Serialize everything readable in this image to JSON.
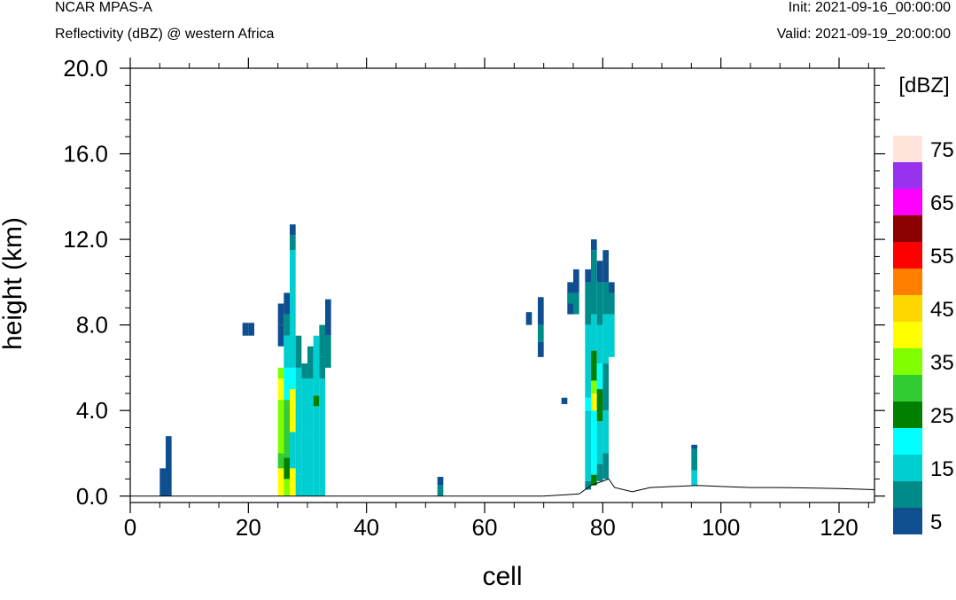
{
  "header": {
    "model": "NCAR MPAS-A",
    "field": "Reflectivity (dBZ) @ western Africa",
    "init": "Init: 2021-09-16_00:00:00",
    "valid": "Valid: 2021-09-19_20:00:00"
  },
  "chart_data": {
    "type": "heatmap",
    "xlabel": "cell",
    "ylabel": "height (km)",
    "xlim": [
      0,
      126
    ],
    "ylim": [
      -0.3,
      20.0
    ],
    "x_ticks": [
      0,
      20,
      40,
      60,
      80,
      100,
      120
    ],
    "x_ticklabels": [
      "0",
      "20",
      "40",
      "60",
      "80",
      "100",
      "120"
    ],
    "y_ticks": [
      0,
      4,
      8,
      12,
      16,
      20
    ],
    "y_ticklabels": [
      "0.0",
      "4.0",
      "8.0",
      "12.0",
      "16.0",
      "20.0"
    ],
    "colorbar": {
      "unit_label": "[dBZ]",
      "levels": [
        5,
        10,
        15,
        20,
        25,
        30,
        35,
        40,
        45,
        50,
        55,
        60,
        65,
        70,
        75
      ],
      "labels": [
        "5",
        "15",
        "25",
        "35",
        "45",
        "55",
        "65",
        "75"
      ],
      "colors": [
        "#0f4f8f",
        "#008b8b",
        "#00ced1",
        "#00ffff",
        "#008000",
        "#32cd32",
        "#7fff00",
        "#ffff00",
        "#ffd700",
        "#ff8000",
        "#ff0000",
        "#8b0000",
        "#ff00ff",
        "#9932ee",
        "#ffe4dc"
      ]
    },
    "columns": [
      {
        "x": 5.5,
        "cells": [
          [
            0,
            1.3,
            5
          ]
        ]
      },
      {
        "x": 6.5,
        "cells": [
          [
            0,
            2.8,
            5
          ]
        ]
      },
      {
        "x": 19.5,
        "cells": [
          [
            7.5,
            8.1,
            5
          ]
        ]
      },
      {
        "x": 20.5,
        "cells": [
          [
            7.5,
            8.1,
            5
          ]
        ]
      },
      {
        "x": 25.5,
        "cells": [
          [
            0,
            1.3,
            40
          ],
          [
            1.3,
            2.0,
            30
          ],
          [
            2.0,
            4.5,
            35
          ],
          [
            4.5,
            5.5,
            40
          ],
          [
            5.5,
            6.0,
            35
          ],
          [
            7.0,
            8.0,
            5
          ],
          [
            8.0,
            9.0,
            5
          ]
        ]
      },
      {
        "x": 26.5,
        "cells": [
          [
            0,
            0.8,
            35
          ],
          [
            0.8,
            1.8,
            25
          ],
          [
            1.8,
            4.5,
            30
          ],
          [
            4.5,
            6.0,
            20
          ],
          [
            6.0,
            7.5,
            15
          ],
          [
            7.5,
            8.5,
            10
          ],
          [
            8.5,
            9.5,
            5
          ]
        ]
      },
      {
        "x": 27.5,
        "cells": [
          [
            0,
            1.3,
            40
          ],
          [
            1.3,
            3.0,
            15
          ],
          [
            3.0,
            5.0,
            40
          ],
          [
            5.0,
            6.0,
            20
          ],
          [
            6.0,
            11.5,
            15
          ],
          [
            11.5,
            12.2,
            10
          ],
          [
            12.2,
            12.7,
            5
          ]
        ]
      },
      {
        "x": 28.5,
        "cells": [
          [
            0,
            1.0,
            15
          ],
          [
            1.0,
            6.0,
            15
          ],
          [
            6.0,
            7.5,
            10
          ]
        ]
      },
      {
        "x": 29.5,
        "cells": [
          [
            0,
            1.5,
            15
          ],
          [
            1.5,
            5.5,
            15
          ],
          [
            5.5,
            6.2,
            10
          ]
        ]
      },
      {
        "x": 30.5,
        "cells": [
          [
            0,
            3.0,
            15
          ],
          [
            3.0,
            5.5,
            15
          ],
          [
            5.5,
            7.0,
            10
          ]
        ]
      },
      {
        "x": 31.5,
        "cells": [
          [
            0,
            4.2,
            15
          ],
          [
            4.2,
            4.7,
            25
          ],
          [
            4.7,
            7.5,
            15
          ]
        ]
      },
      {
        "x": 32.5,
        "cells": [
          [
            0,
            5.5,
            15
          ],
          [
            5.5,
            6.5,
            10
          ],
          [
            6.5,
            8.0,
            10
          ]
        ]
      },
      {
        "x": 33.5,
        "cells": [
          [
            6.0,
            7.5,
            10
          ],
          [
            7.5,
            9.2,
            5
          ]
        ]
      },
      {
        "x": 52.5,
        "cells": [
          [
            0,
            0.5,
            10
          ],
          [
            0.5,
            0.9,
            5
          ]
        ]
      },
      {
        "x": 67.5,
        "cells": [
          [
            8.0,
            8.6,
            5
          ]
        ]
      },
      {
        "x": 69.5,
        "cells": [
          [
            6.5,
            7.2,
            5
          ],
          [
            7.2,
            8.0,
            10
          ],
          [
            8.0,
            9.3,
            5
          ]
        ]
      },
      {
        "x": 73.5,
        "cells": [
          [
            4.3,
            4.6,
            5
          ]
        ]
      },
      {
        "x": 74.5,
        "cells": [
          [
            8.5,
            10.0,
            5
          ],
          [
            9.0,
            9.5,
            10
          ]
        ]
      },
      {
        "x": 75.5,
        "cells": [
          [
            8.5,
            9.5,
            10
          ],
          [
            9.5,
            10.6,
            5
          ]
        ]
      },
      {
        "x": 77.5,
        "cells": [
          [
            0.3,
            0.7,
            10
          ],
          [
            0.7,
            4.0,
            15
          ],
          [
            4.0,
            4.6,
            20
          ],
          [
            4.6,
            8.0,
            15
          ],
          [
            8.0,
            10.0,
            10
          ],
          [
            10.0,
            10.6,
            5
          ]
        ]
      },
      {
        "x": 78.5,
        "cells": [
          [
            0.5,
            1.0,
            25
          ],
          [
            1.0,
            4.0,
            20
          ],
          [
            4.0,
            4.8,
            40
          ],
          [
            4.8,
            5.4,
            35
          ],
          [
            5.4,
            6.8,
            25
          ],
          [
            6.8,
            8.5,
            15
          ],
          [
            8.5,
            11.5,
            10
          ],
          [
            11.5,
            12.0,
            5
          ]
        ]
      },
      {
        "x": 79.5,
        "cells": [
          [
            0.7,
            1.5,
            10
          ],
          [
            1.5,
            3.5,
            15
          ],
          [
            3.5,
            5.0,
            25
          ],
          [
            5.0,
            6.2,
            20
          ],
          [
            6.2,
            8.0,
            15
          ],
          [
            8.0,
            10.0,
            10
          ],
          [
            10.0,
            11.0,
            5
          ]
        ]
      },
      {
        "x": 80.5,
        "cells": [
          [
            0.8,
            2.0,
            10
          ],
          [
            2.0,
            4.0,
            15
          ],
          [
            4.0,
            6.2,
            10
          ],
          [
            6.2,
            8.5,
            15
          ],
          [
            8.5,
            10.0,
            10
          ],
          [
            10.0,
            11.5,
            5
          ]
        ]
      },
      {
        "x": 81.5,
        "cells": [
          [
            6.5,
            8.5,
            15
          ],
          [
            8.5,
            9.5,
            10
          ],
          [
            9.5,
            10.0,
            5
          ]
        ]
      },
      {
        "x": 95.5,
        "cells": [
          [
            0.5,
            1.2,
            15
          ],
          [
            1.2,
            2.2,
            10
          ],
          [
            2.2,
            2.4,
            5
          ]
        ]
      }
    ],
    "terrain": {
      "x": [
        0,
        5,
        10,
        20,
        30,
        40,
        50,
        60,
        70,
        76,
        78,
        80,
        81,
        82,
        85,
        88,
        92,
        96,
        100,
        105,
        110,
        115,
        120,
        126
      ],
      "y": [
        0,
        0,
        0,
        0,
        0,
        0,
        0,
        0,
        0,
        0.1,
        0.5,
        0.7,
        0.8,
        0.4,
        0.2,
        0.4,
        0.45,
        0.5,
        0.45,
        0.4,
        0.4,
        0.38,
        0.35,
        0.3
      ]
    }
  }
}
